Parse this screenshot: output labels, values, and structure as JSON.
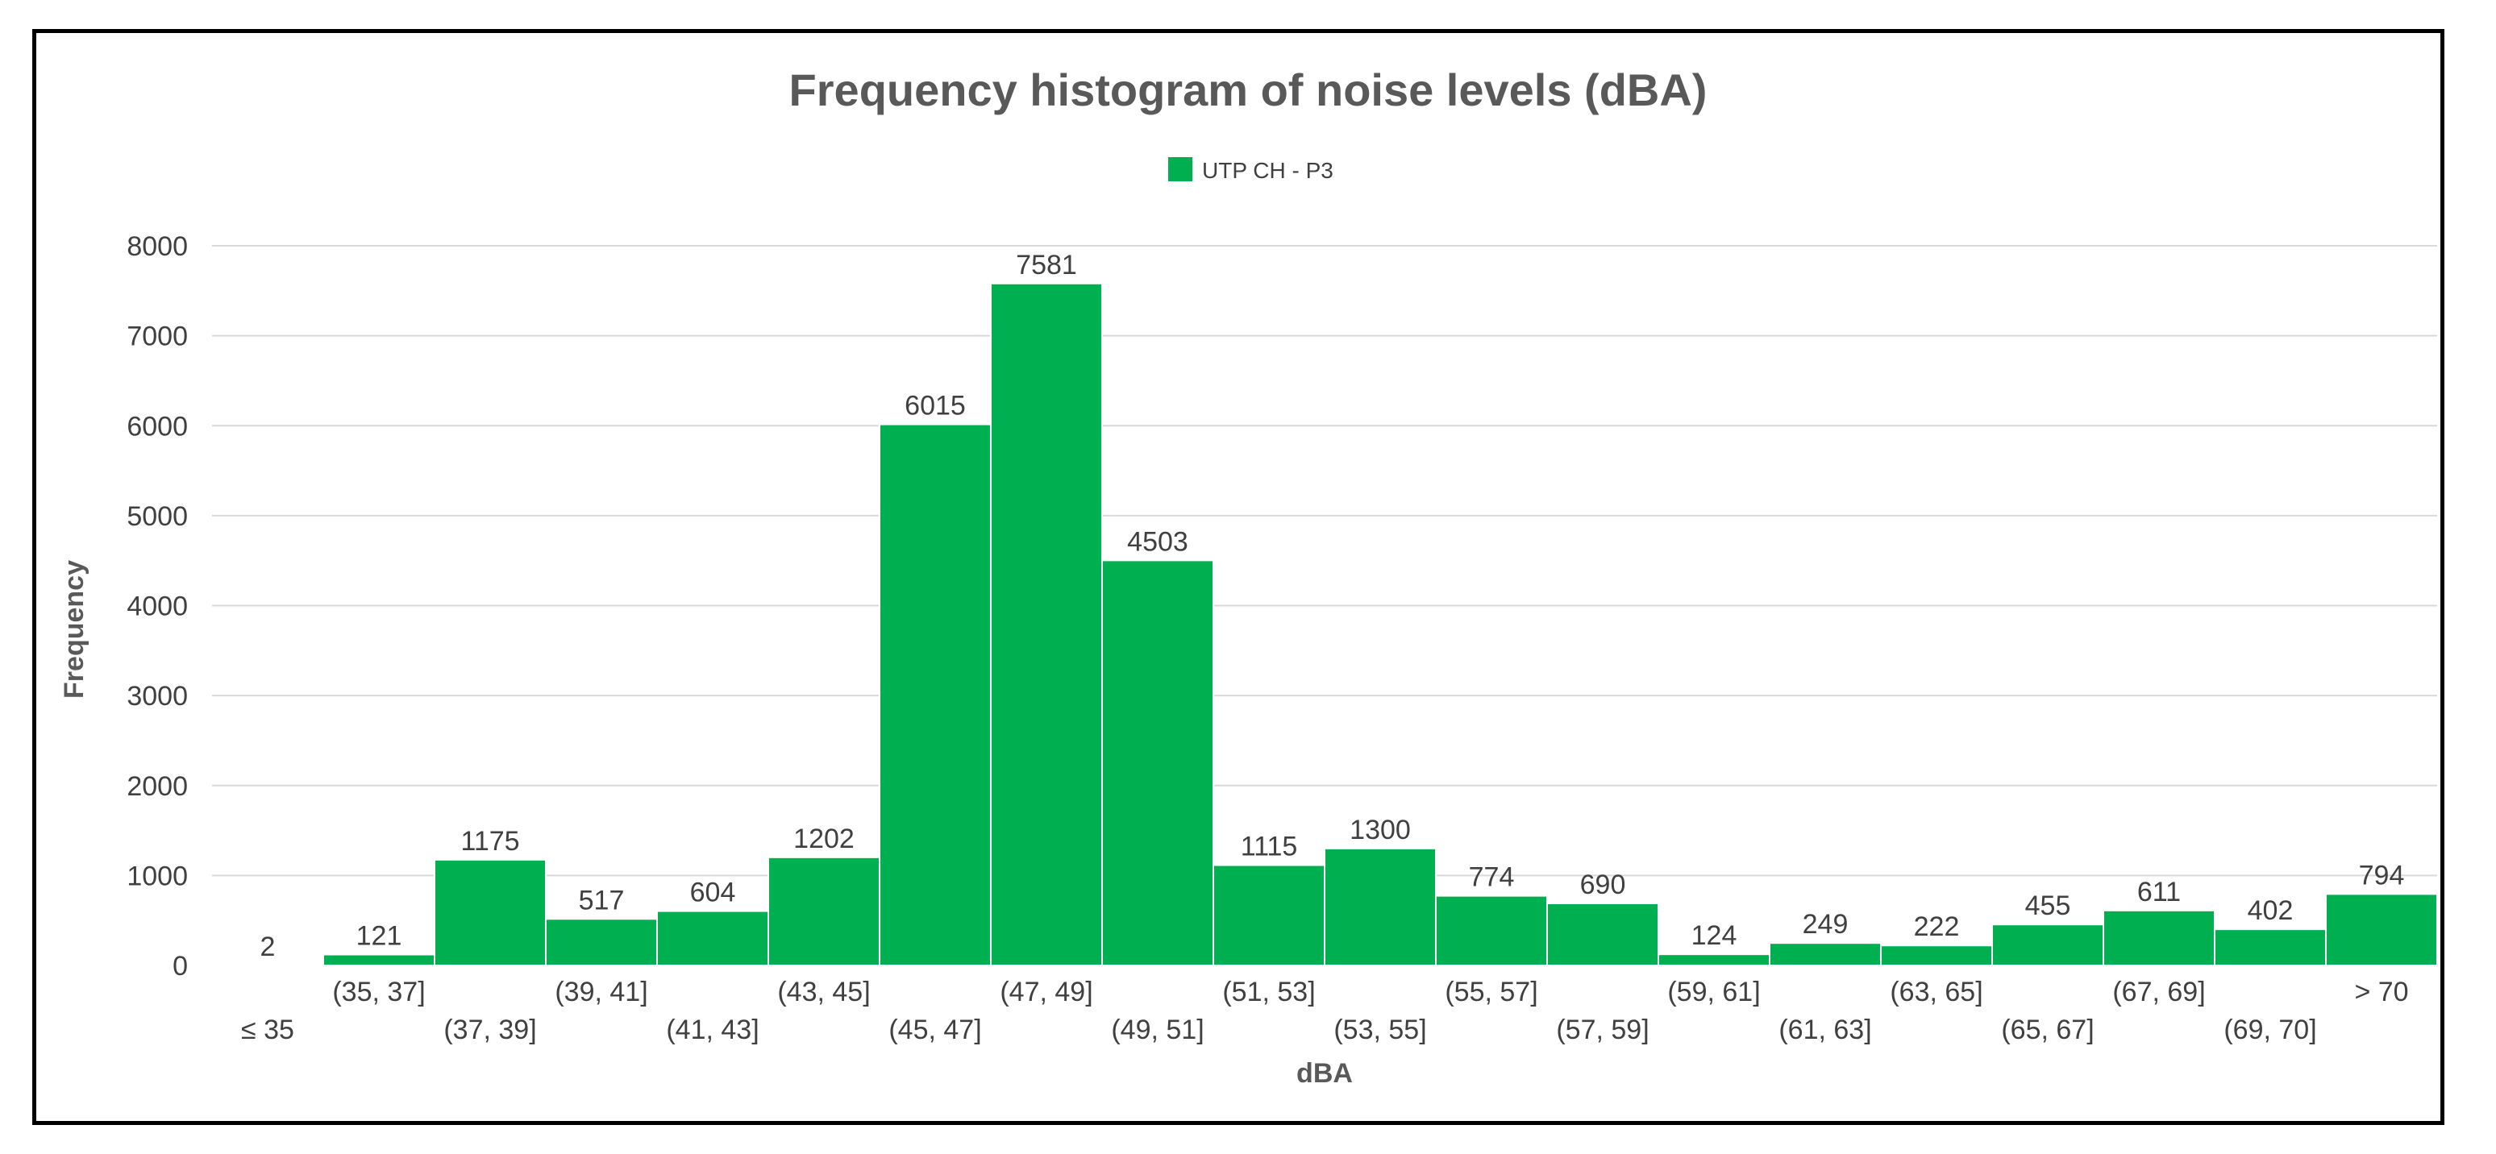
{
  "chart_data": {
    "type": "bar",
    "title": "Frequency histogram of noise levels (dBA)",
    "xlabel": "dBA",
    "ylabel": "Frequency",
    "ylim": [
      0,
      8000
    ],
    "yticks": [
      0,
      1000,
      2000,
      3000,
      4000,
      5000,
      6000,
      7000,
      8000
    ],
    "grid": true,
    "legend_position": "top-center",
    "categories": [
      "≤ 35",
      "(35, 37]",
      "(37, 39]",
      "(39, 41]",
      "(41, 43]",
      "(43, 45]",
      "(45, 47]",
      "(47, 49]",
      "(49, 51]",
      "(51, 53]",
      "(53, 55]",
      "(55, 57]",
      "(57, 59]",
      "(59, 61]",
      "(61, 63]",
      "(63, 65]",
      "(65, 67]",
      "(67, 69]",
      "(69, 70]",
      "> 70"
    ],
    "series": [
      {
        "name": "UTP CH - P3",
        "color": "#00b050",
        "values": [
          2,
          121,
          1175,
          517,
          604,
          1202,
          6015,
          7581,
          4503,
          1115,
          1300,
          774,
          690,
          124,
          249,
          222,
          455,
          611,
          402,
          794
        ]
      }
    ]
  }
}
